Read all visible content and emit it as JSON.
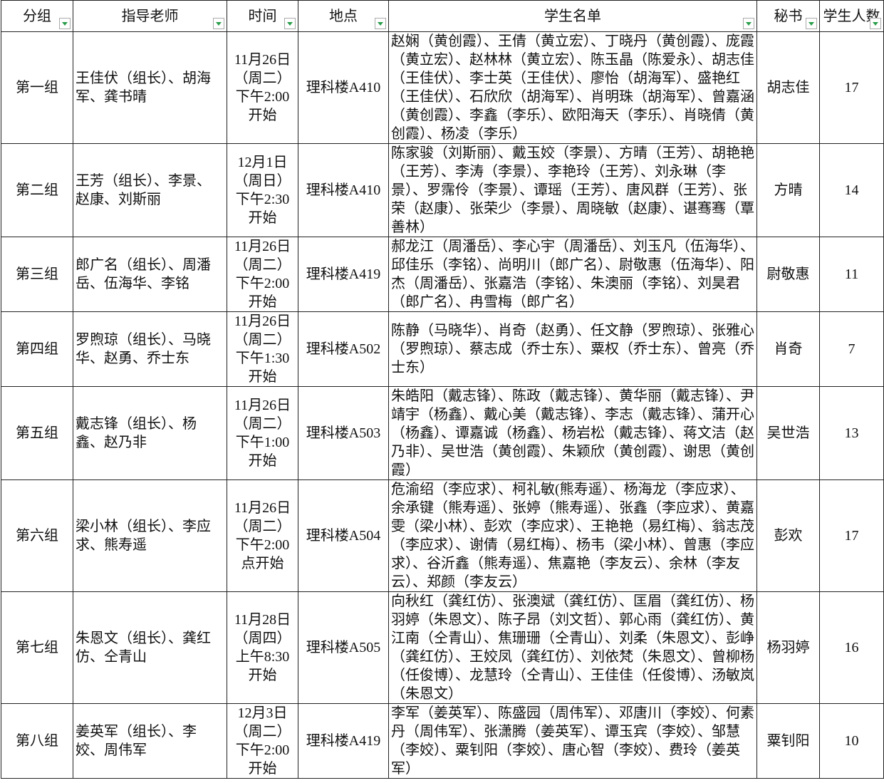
{
  "table": {
    "headers": [
      "分组",
      "指导老师",
      "时间",
      "地点",
      "学生名单",
      "秘书",
      "学生人数"
    ],
    "rows": [
      [
        "第一组",
        "王佳伏（组长）、胡海军、龚书晴",
        [
          "11月26日",
          "（周二）",
          "下午2:00",
          "开始"
        ],
        "理科楼A410",
        "赵娴（黄创霞）、王倩（黄立宏）、丁晓丹（黄创霞）、庞霞（黄立宏）、赵林林（黄立宏）、陈玉晶（陈爱永）、胡志佳（王佳伏）、李士英（王佳伏）、廖怡（胡海军）、盛艳红（王佳伏）、石欣欣（胡海军）、肖明珠（胡海军）、曾嘉涵（黄创霞）、李鑫（李乐）、欧阳海天（李乐）、肖晓倩（黄创霞）、杨凌（李乐）",
        "胡志佳",
        17
      ],
      [
        "第二组",
        "王芳（组长）、李景、赵康、刘斯丽",
        [
          "12月1日",
          "（周日）",
          "下午2:30",
          "开始"
        ],
        "理科楼A410",
        "陈家骏（刘斯丽）、戴玉姣（李景）、方晴（王芳）、胡艳艳（王芳）、李涛（李景）、李艳玲（王芳）、刘永琳（李景）、罗霈伶（李景）、谭瑶（王芳）、唐风群（王芳）、张荣（赵康）、张荣少（李景）、周晓敏（赵康）、谌骞骞（覃善林）",
        "方晴",
        14
      ],
      [
        "第三组",
        "郎广名（组长）、周潘岳、伍海华、李铭",
        [
          "11月26日",
          "（周二）",
          "下午2:00",
          "开始"
        ],
        "理科楼A419",
        "郝龙江（周潘岳）、李心宇（周潘岳）、刘玉凡（伍海华）、邱佳乐（李铭）、尚明川（郎广名）、尉敬惠（伍海华）、阳杰（周潘岳）、张嘉浩（李铭）、朱澳丽（李铭）、刘昊君（郎广名）、冉雪梅（郎广名）",
        "尉敬惠",
        11
      ],
      [
        "第四组",
        "罗煦琼（组长）、马晓华、赵勇、乔士东",
        [
          "11月26日",
          "（周二）",
          "下午1:30",
          "开始"
        ],
        "理科楼A502",
        "陈静（马晓华）、肖奇（赵勇）、任文静（罗煦琼）、张雅心（罗煦琼）、蔡志成（乔士东）、粟权（乔士东）、曾亮（乔士东）",
        "肖奇",
        7
      ],
      [
        "第五组",
        "戴志锋（组长）、杨鑫、赵乃非",
        [
          "11月26日",
          "（周二）",
          "下午1:00",
          "开始"
        ],
        "理科楼A503",
        "朱皓阳（戴志锋）、陈政（戴志锋）、黄华丽（戴志锋）、尹靖宇（杨鑫）、戴心美（戴志锋）、李志（戴志锋）、蒲开心（杨鑫）、谭嘉诚（杨鑫）、杨岩松（戴志锋）、蒋文洁（赵乃非）、吴世浩（黄创霞）、朱颖欣（黄创霞）、谢思（黄创霞）",
        "吴世浩",
        13
      ],
      [
        "第六组",
        "梁小林（组长）、李应求、熊寿遥",
        [
          "11月26日",
          "（周二）",
          "下午2:00",
          "点开始"
        ],
        "理科楼A504",
        "危渝绍（李应求）、柯礼敏(熊寿遥）、杨海龙（李应求）、余承键（熊寿遥）、张婷（熊寿遥）、张鑫（李应求）、黄嘉雯（梁小林）、彭欢（李应求）、王艳艳（易红梅）、翁志茂（李应求）、谢倩（易红梅）、杨韦（梁小林）、曾惠（李应求）、谷沂鑫（熊寿遥）、焦嘉艳（李友云）、余林（李友云）、郑颜（李友云）",
        "彭欢",
        17
      ],
      [
        "第七组",
        "朱恩文（组长）、龚红仿、仝青山",
        [
          "11月28日",
          "（周四）",
          "上午8:30",
          "开始"
        ],
        "理科楼A505",
        "向秋红（龚红仿）、张澳斌（龚红仿）、匡眉（龚红仿）、杨羽婷（朱恩文）、陈子昂（刘文哲）、郭心雨（龚红仿）、黄江南（仝青山）、焦珊珊（仝青山）、刘柔（朱恩文）、彭峥（龚红仿）、王姣凤（龚红仿）、刘依梵（朱恩文）、曾柳杨（任俊博）、龙慧玲（仝青山）、王佳佳（任俊博）、汤敏岚（朱恩文）",
        "杨羽婷",
        16
      ],
      [
        "第八组",
        "姜英军（组长）、李姣、周伟军",
        [
          "12月3日",
          "（周二）",
          "下午2:00",
          "开始"
        ],
        "理科楼A419",
        "李军（姜英军）、陈盛园（周伟军）、邓唐川（李姣）、何素丹（周伟军）、张潇腾（姜英军）、谭玉宾（李姣）、邹慧（李姣）、粟钊阳（李姣）、唐心智（李姣）、费玲（姜英军）",
        "粟钊阳",
        10
      ]
    ]
  }
}
